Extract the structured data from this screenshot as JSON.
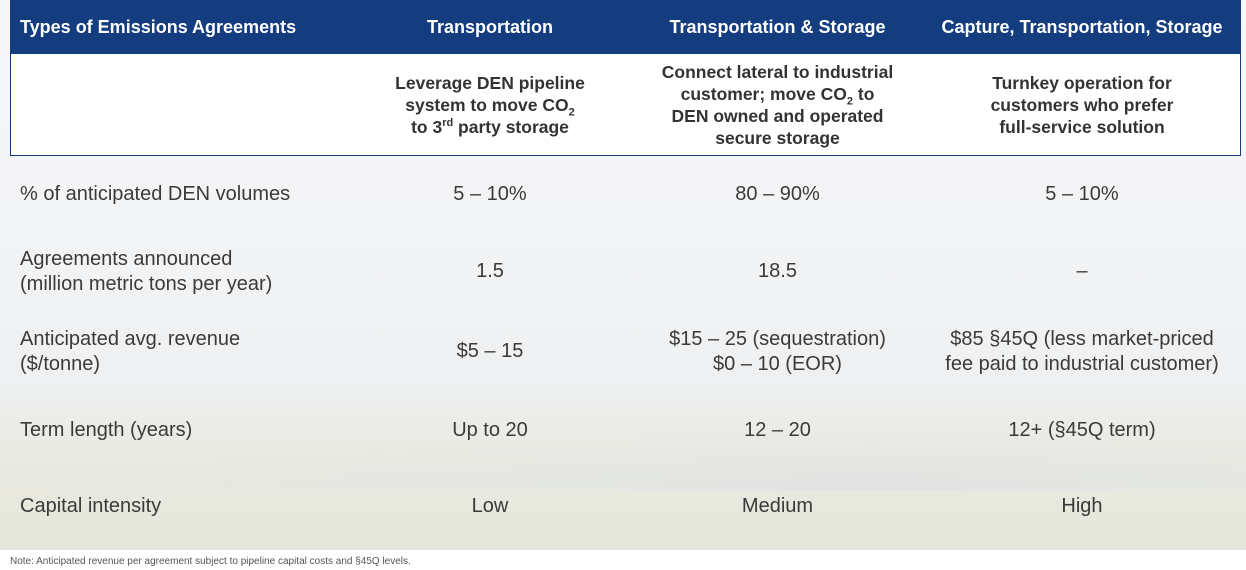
{
  "header": {
    "col0": "Types of Emissions Agreements",
    "col1": "Transportation",
    "col2": "Transportation & Storage",
    "col3": "Capture, Transportation, Storage"
  },
  "descriptions": {
    "col1": {
      "line1": "Leverage DEN pipeline",
      "line2_pre": "system to move CO",
      "line2_sub": "2",
      "line3_pre": "to 3",
      "line3_sup": "rd",
      "line3_post": " party storage"
    },
    "col2": {
      "line1": "Connect lateral to industrial",
      "line2_pre": "customer; move CO",
      "line2_sub": "2",
      "line2_post": " to",
      "line3": "DEN owned and operated",
      "line4": "secure storage"
    },
    "col3": {
      "line1": "Turnkey operation for",
      "line2": "customers who prefer",
      "line3": "full-service solution"
    }
  },
  "rows": [
    {
      "label_line1": "% of anticipated DEN volumes",
      "label_line2": "",
      "c1": [
        "5 – 10%"
      ],
      "c2": [
        "80 – 90%"
      ],
      "c3": [
        "5 – 10%"
      ]
    },
    {
      "label_line1": "Agreements announced",
      "label_line2": "(million metric tons per year)",
      "c1": [
        "1.5"
      ],
      "c2": [
        "18.5"
      ],
      "c3": [
        "–"
      ]
    },
    {
      "label_line1": "Anticipated avg. revenue",
      "label_line2": "($/tonne)",
      "c1": [
        "$5 – 15"
      ],
      "c2": [
        "$15 – 25 (sequestration)",
        "$0 – 10 (EOR)"
      ],
      "c3": [
        "$85 §45Q (less market-priced",
        "fee paid to industrial customer)"
      ]
    },
    {
      "label_line1": "Term length (years)",
      "label_line2": "",
      "c1": [
        "Up to 20"
      ],
      "c2": [
        "12 – 20"
      ],
      "c3": [
        "12+ (§45Q term)"
      ]
    },
    {
      "label_line1": "Capital intensity",
      "label_line2": "",
      "c1": [
        "Low"
      ],
      "c2": [
        "Medium"
      ],
      "c3": [
        "High"
      ]
    }
  ],
  "note": "Note: Anticipated revenue per agreement subject to pipeline capital costs and §45Q levels.",
  "colors": {
    "header_bg": "#133d7e",
    "header_text": "#ffffff",
    "body_text": "#3a3a3a"
  }
}
